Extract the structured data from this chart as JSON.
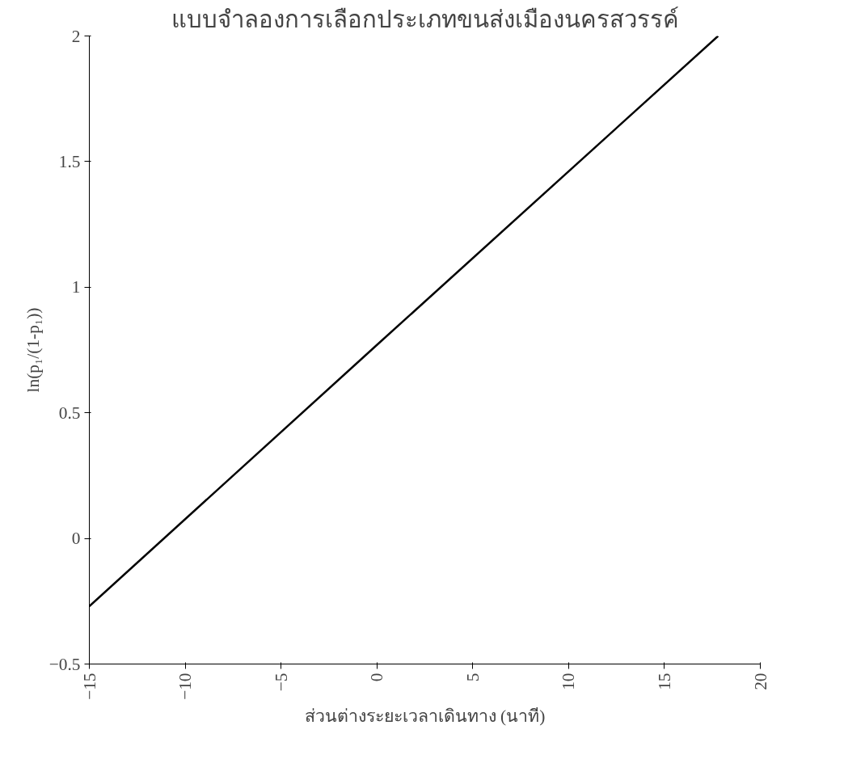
{
  "chart_data": {
    "type": "line",
    "title": "แบบจำลองการเลือกประเภทขนส่งเมืองนครสวรรค์",
    "xlabel": "ส่วนต่างระยะเวลาเดินทาง (นาที)",
    "ylabel": "ln(p₁/(1-p₁))",
    "x": [
      -15,
      0,
      17.8
    ],
    "series": [
      {
        "color": "#000000",
        "values": [
          -0.27,
          0.77,
          2.0
        ]
      }
    ],
    "xlim": [
      -15,
      20
    ],
    "xticks": [
      -15,
      -10,
      -5,
      0,
      5,
      10,
      15,
      20
    ],
    "ylim": [
      -0.5,
      2
    ],
    "yticks": [
      -0.5,
      0,
      0.5,
      1,
      1.5,
      2
    ],
    "grid": false,
    "marker": "none",
    "line_style": "solid"
  }
}
